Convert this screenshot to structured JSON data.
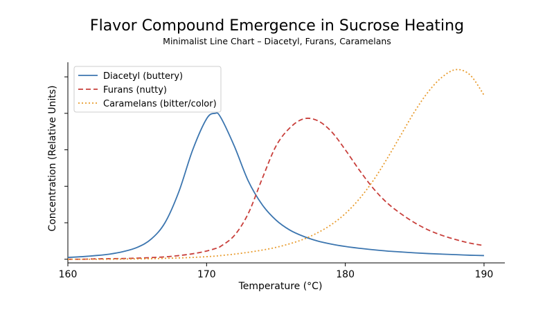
{
  "chart_data": {
    "type": "line",
    "title": "Flavor Compound Emergence in Sucrose Heating",
    "subtitle": "Minimalist Line Chart – Diacetyl, Furans, Caramelans",
    "xlabel": "Temperature (°C)",
    "ylabel": "Concentration (Relative Units)",
    "xlim": [
      160,
      191.5
    ],
    "ylim": [
      -0.02,
      1.08
    ],
    "x_ticks": [
      160,
      170,
      180,
      190
    ],
    "y_ticks_labeled": false,
    "y_tick_values": [
      0,
      0.2,
      0.4,
      0.6,
      0.8,
      1.0
    ],
    "grid": false,
    "legend_position": "top-left",
    "x": [
      160,
      161,
      162,
      163,
      164,
      165,
      166,
      167,
      168,
      169,
      170,
      170.6,
      171,
      172,
      173,
      174,
      175,
      176,
      177,
      178,
      179,
      180,
      181,
      182,
      183,
      184,
      185,
      186,
      187,
      188,
      189,
      190
    ],
    "series": [
      {
        "name": "Diacetyl (buttery)",
        "color": "#3b75af",
        "style": "solid",
        "values": [
          0.01,
          0.014,
          0.02,
          0.028,
          0.042,
          0.065,
          0.11,
          0.2,
          0.37,
          0.6,
          0.77,
          0.8,
          0.78,
          0.62,
          0.43,
          0.3,
          0.215,
          0.16,
          0.125,
          0.1,
          0.083,
          0.07,
          0.06,
          0.052,
          0.045,
          0.04,
          0.035,
          0.031,
          0.028,
          0.025,
          0.022,
          0.02
        ]
      },
      {
        "name": "Furans (nutty)",
        "color": "#c83e3a",
        "style": "dashed",
        "values": [
          0.0,
          0.0,
          0.002,
          0.003,
          0.004,
          0.006,
          0.009,
          0.013,
          0.02,
          0.03,
          0.045,
          0.058,
          0.07,
          0.13,
          0.25,
          0.44,
          0.62,
          0.72,
          0.77,
          0.76,
          0.7,
          0.6,
          0.49,
          0.39,
          0.31,
          0.25,
          0.2,
          0.16,
          0.13,
          0.107,
          0.088,
          0.075
        ]
      },
      {
        "name": "Caramelans (bitter/color)",
        "color": "#e89b2d",
        "style": "dotted",
        "values": [
          0.0,
          0.0,
          0.0,
          0.0,
          0.001,
          0.002,
          0.003,
          0.005,
          0.007,
          0.01,
          0.014,
          0.017,
          0.02,
          0.028,
          0.038,
          0.05,
          0.065,
          0.085,
          0.11,
          0.145,
          0.19,
          0.25,
          0.33,
          0.43,
          0.55,
          0.68,
          0.81,
          0.92,
          1.0,
          1.04,
          1.01,
          0.9
        ]
      }
    ]
  }
}
